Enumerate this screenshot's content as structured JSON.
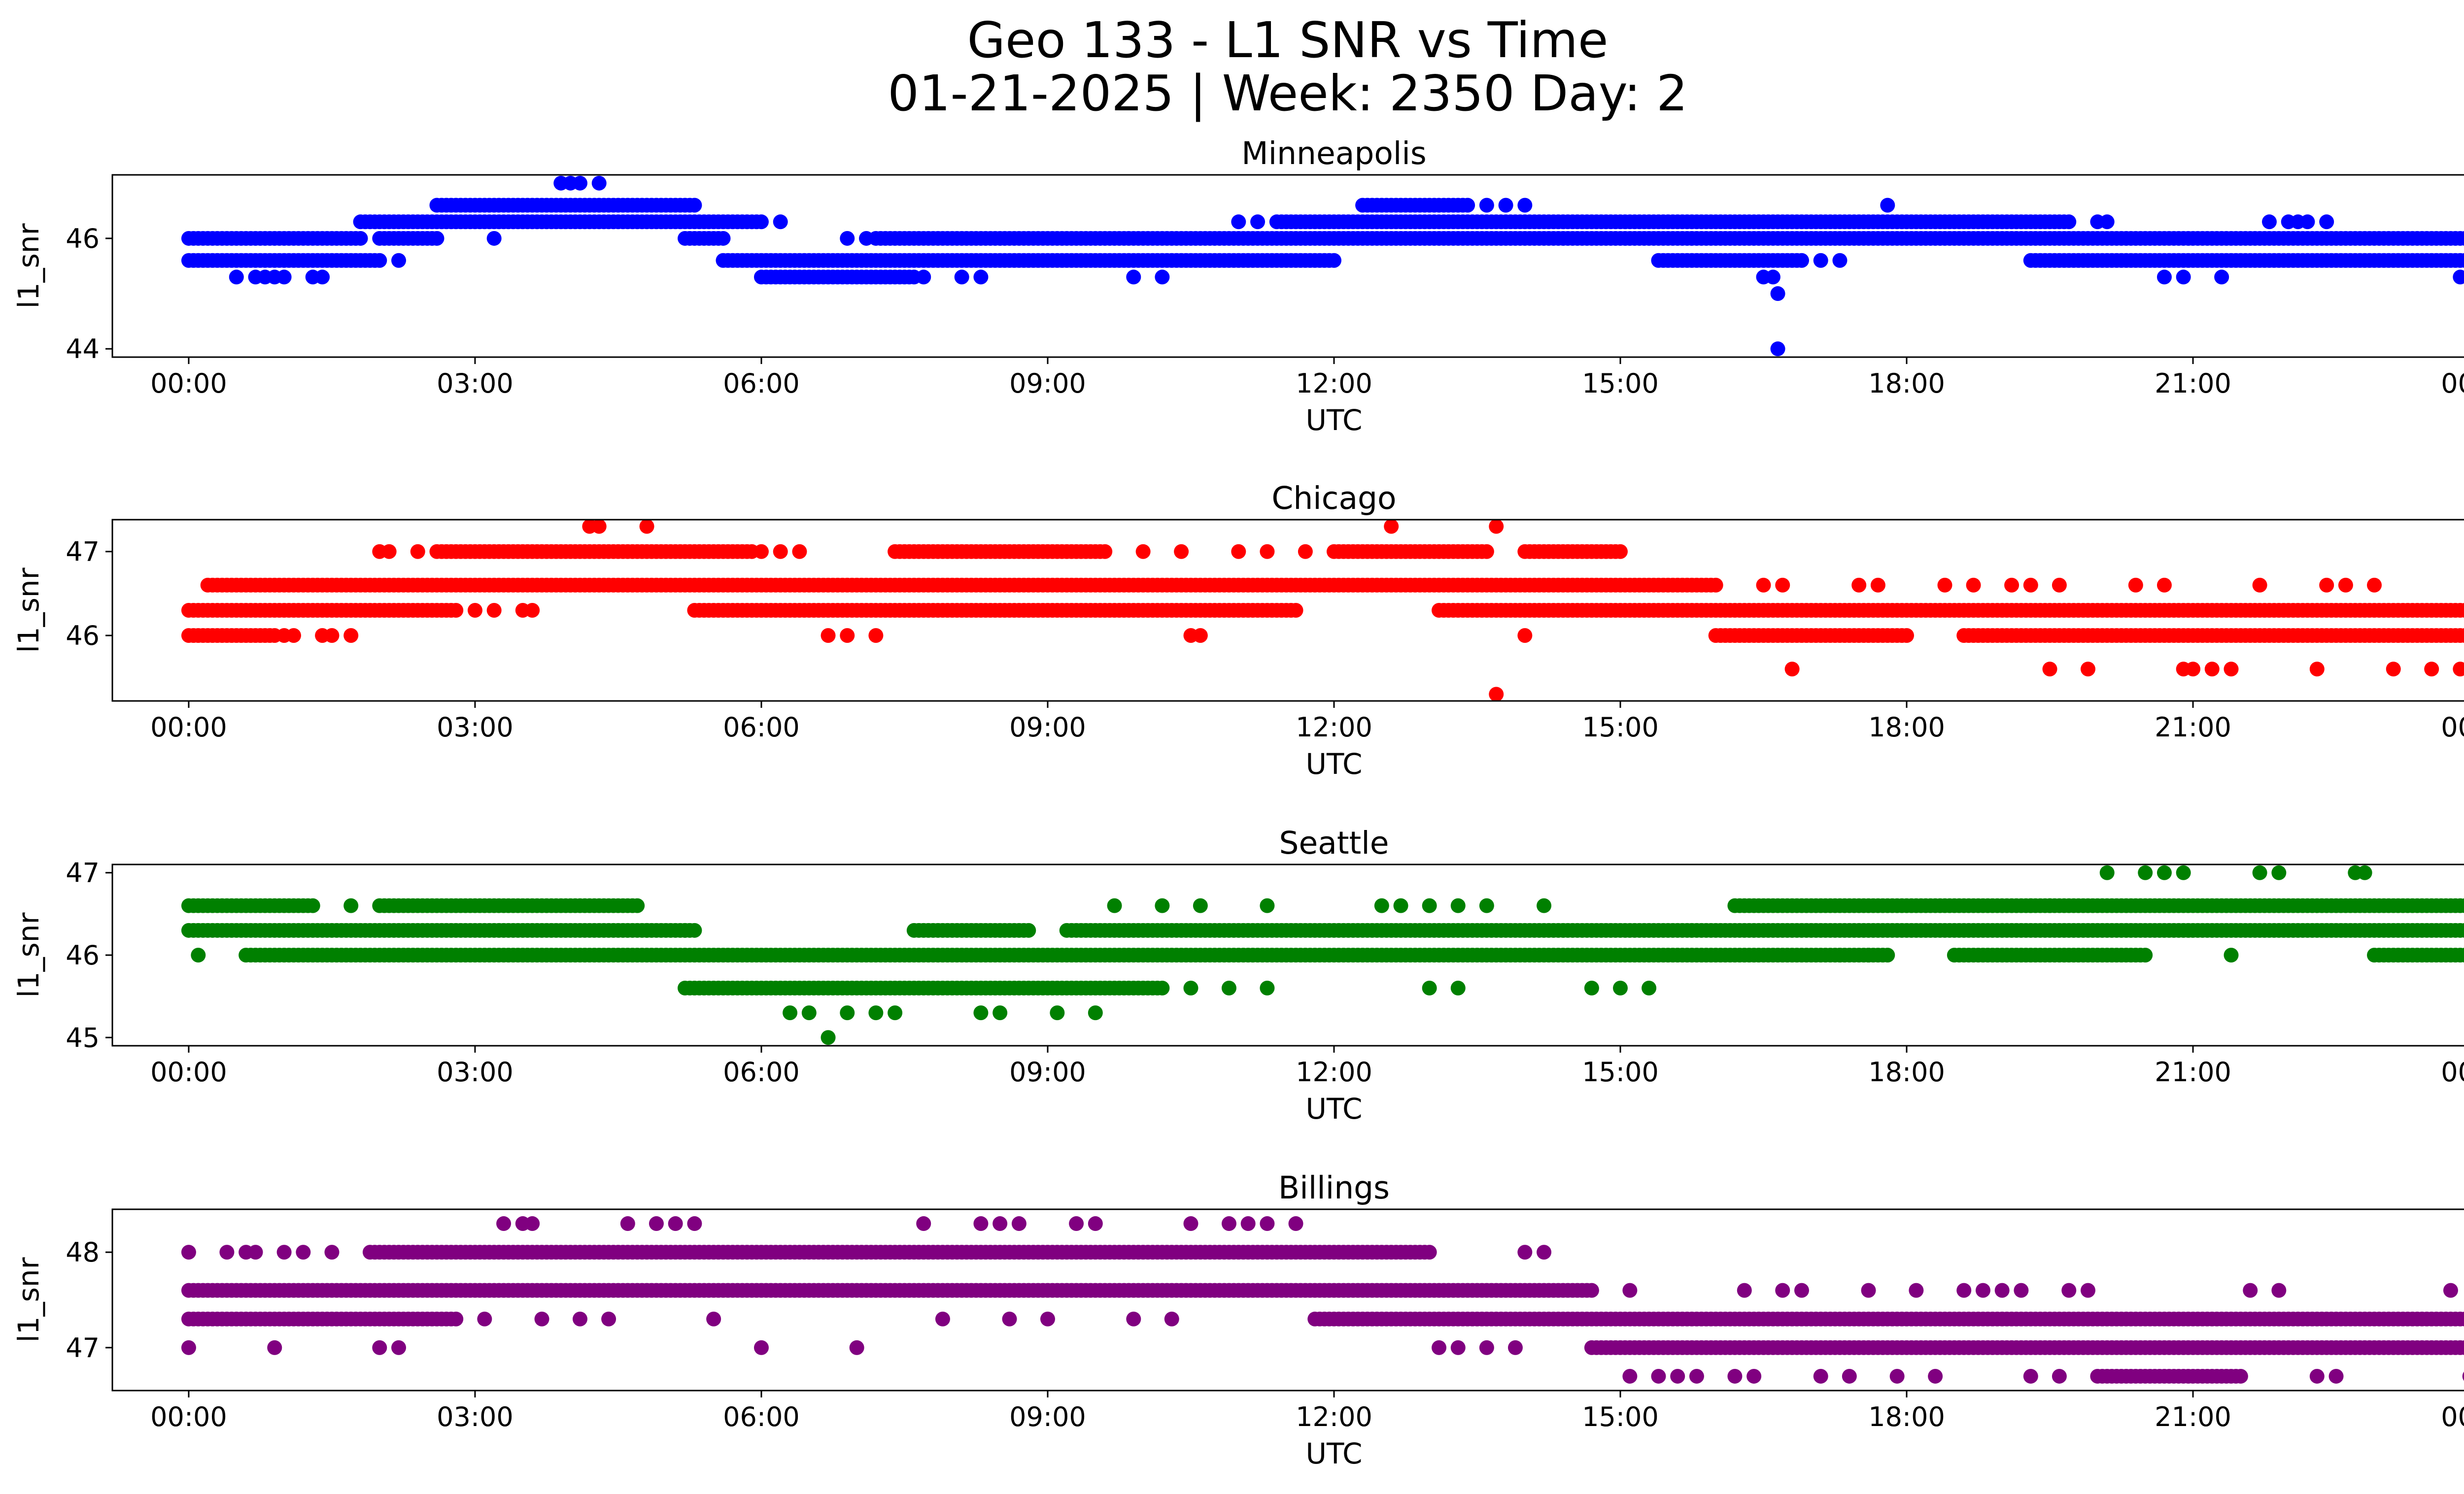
{
  "figure": {
    "title_line1": "Geo 133 - L1 SNR vs Time",
    "title_line2": "01-21-2025 | Week: 2350 Day: 2"
  },
  "chart_data": [
    {
      "type": "scatter",
      "title": "Minneapolis",
      "xlabel": "UTC",
      "ylabel": "l1_snr",
      "color": "#0000ff",
      "xlim": [
        -0.8,
        24.8
      ],
      "ylim": [
        43.85,
        47.15
      ],
      "x_ticks": [
        0,
        3,
        6,
        9,
        12,
        15,
        18,
        21,
        24
      ],
      "x_tick_labels": [
        "00:00",
        "03:00",
        "06:00",
        "09:00",
        "12:00",
        "15:00",
        "18:00",
        "21:00",
        "00:00"
      ],
      "y_ticks": [
        44,
        46
      ],
      "y_tick_labels": [
        "44",
        "46"
      ],
      "bands": [
        {
          "y": 46.0,
          "ranges": [
            [
              0,
              1.8
            ],
            [
              2.0,
              2.6
            ],
            [
              5.2,
              5.6
            ],
            [
              7.2,
              24.0
            ]
          ]
        },
        {
          "y": 45.6,
          "ranges": [
            [
              0,
              2.0
            ],
            [
              5.6,
              12.0
            ],
            [
              15.4,
              16.9
            ],
            [
              19.3,
              24.0
            ]
          ]
        },
        {
          "y": 46.3,
          "ranges": [
            [
              1.8,
              6.0
            ],
            [
              11.4,
              19.7
            ]
          ]
        },
        {
          "y": 46.6,
          "ranges": [
            [
              2.6,
              5.3
            ],
            [
              12.3,
              13.4
            ]
          ]
        },
        {
          "y": 45.3,
          "ranges": [
            [
              6.0,
              7.6
            ]
          ]
        }
      ],
      "points": [
        [
          0.5,
          45.3
        ],
        [
          0.7,
          45.3
        ],
        [
          0.8,
          45.3
        ],
        [
          0.9,
          45.3
        ],
        [
          1.0,
          45.3
        ],
        [
          1.3,
          45.3
        ],
        [
          1.4,
          45.3
        ],
        [
          2.2,
          45.6
        ],
        [
          3.2,
          46.0
        ],
        [
          3.9,
          47.0
        ],
        [
          4.0,
          47.0
        ],
        [
          4.1,
          47.0
        ],
        [
          4.3,
          47.0
        ],
        [
          6.2,
          46.3
        ],
        [
          6.9,
          46.0
        ],
        [
          7.1,
          46.0
        ],
        [
          7.7,
          45.3
        ],
        [
          8.1,
          45.3
        ],
        [
          8.3,
          45.3
        ],
        [
          9.9,
          45.3
        ],
        [
          10.2,
          45.3
        ],
        [
          11.0,
          46.3
        ],
        [
          11.2,
          46.3
        ],
        [
          13.6,
          46.6
        ],
        [
          13.8,
          46.6
        ],
        [
          14.0,
          46.6
        ],
        [
          16.5,
          45.3
        ],
        [
          16.6,
          45.3
        ],
        [
          16.65,
          45.0
        ],
        [
          16.65,
          44.0
        ],
        [
          17.1,
          45.6
        ],
        [
          17.3,
          45.6
        ],
        [
          17.8,
          46.6
        ],
        [
          20.0,
          46.3
        ],
        [
          20.1,
          46.3
        ],
        [
          20.7,
          45.3
        ],
        [
          20.9,
          45.3
        ],
        [
          21.3,
          45.3
        ],
        [
          21.8,
          46.3
        ],
        [
          22.0,
          46.3
        ],
        [
          22.1,
          46.3
        ],
        [
          22.2,
          46.3
        ],
        [
          22.4,
          46.3
        ],
        [
          23.8,
          45.3
        ],
        [
          23.9,
          45.3
        ],
        [
          24.0,
          45.3
        ]
      ]
    },
    {
      "type": "scatter",
      "title": "Chicago",
      "xlabel": "UTC",
      "ylabel": "l1_snr",
      "color": "#ff0000",
      "xlim": [
        -0.8,
        24.8
      ],
      "ylim": [
        45.22,
        47.38
      ],
      "x_ticks": [
        0,
        3,
        6,
        9,
        12,
        15,
        18,
        21,
        24
      ],
      "x_tick_labels": [
        "00:00",
        "03:00",
        "06:00",
        "09:00",
        "12:00",
        "15:00",
        "18:00",
        "21:00",
        "00:00"
      ],
      "y_ticks": [
        46,
        47
      ],
      "y_tick_labels": [
        "46",
        "47"
      ],
      "bands": [
        {
          "y": 46.3,
          "ranges": [
            [
              0,
              2.8
            ],
            [
              5.3,
              11.6
            ],
            [
              13.1,
              24.0
            ]
          ]
        },
        {
          "y": 46.0,
          "ranges": [
            [
              0,
              0.9
            ],
            [
              16.0,
              18.0
            ],
            [
              18.6,
              24.0
            ]
          ]
        },
        {
          "y": 46.6,
          "ranges": [
            [
              0.2,
              16.0
            ]
          ]
        },
        {
          "y": 47.0,
          "ranges": [
            [
              2.6,
              5.9
            ],
            [
              7.4,
              9.6
            ],
            [
              12.0,
              13.6
            ],
            [
              14.0,
              15.0
            ]
          ]
        }
      ],
      "points": [
        [
          1.0,
          46.0
        ],
        [
          1.1,
          46.0
        ],
        [
          1.4,
          46.0
        ],
        [
          1.5,
          46.0
        ],
        [
          1.7,
          46.0
        ],
        [
          2.0,
          47.0
        ],
        [
          2.1,
          47.0
        ],
        [
          2.4,
          47.0
        ],
        [
          3.0,
          46.3
        ],
        [
          3.2,
          46.3
        ],
        [
          3.5,
          46.3
        ],
        [
          3.6,
          46.3
        ],
        [
          4.2,
          47.3
        ],
        [
          4.3,
          47.3
        ],
        [
          4.8,
          47.3
        ],
        [
          6.0,
          47.0
        ],
        [
          6.2,
          47.0
        ],
        [
          6.4,
          47.0
        ],
        [
          6.7,
          46.0
        ],
        [
          6.9,
          46.0
        ],
        [
          7.2,
          46.0
        ],
        [
          10.0,
          47.0
        ],
        [
          10.4,
          47.0
        ],
        [
          10.5,
          46.0
        ],
        [
          10.6,
          46.0
        ],
        [
          11.0,
          47.0
        ],
        [
          11.3,
          47.0
        ],
        [
          11.7,
          47.0
        ],
        [
          12.6,
          47.3
        ],
        [
          13.7,
          47.3
        ],
        [
          13.7,
          45.3
        ],
        [
          14.0,
          46.0
        ],
        [
          16.5,
          46.6
        ],
        [
          16.7,
          46.6
        ],
        [
          16.8,
          45.6
        ],
        [
          17.5,
          46.6
        ],
        [
          17.7,
          46.6
        ],
        [
          18.4,
          46.6
        ],
        [
          18.7,
          46.6
        ],
        [
          19.1,
          46.6
        ],
        [
          19.3,
          46.6
        ],
        [
          19.5,
          45.6
        ],
        [
          19.6,
          46.6
        ],
        [
          19.9,
          45.6
        ],
        [
          20.4,
          46.6
        ],
        [
          20.7,
          46.6
        ],
        [
          20.9,
          45.6
        ],
        [
          21.0,
          45.6
        ],
        [
          21.2,
          45.6
        ],
        [
          21.4,
          45.6
        ],
        [
          21.7,
          46.6
        ],
        [
          22.3,
          45.6
        ],
        [
          22.4,
          46.6
        ],
        [
          22.6,
          46.6
        ],
        [
          22.9,
          46.6
        ],
        [
          23.1,
          45.6
        ],
        [
          23.5,
          45.6
        ],
        [
          23.8,
          45.6
        ],
        [
          24.0,
          45.6
        ]
      ]
    },
    {
      "type": "scatter",
      "title": "Seattle",
      "xlabel": "UTC",
      "ylabel": "l1_snr",
      "color": "#008000",
      "xlim": [
        -0.8,
        24.8
      ],
      "ylim": [
        44.9,
        47.1
      ],
      "x_ticks": [
        0,
        3,
        6,
        9,
        12,
        15,
        18,
        21,
        24
      ],
      "x_tick_labels": [
        "00:00",
        "03:00",
        "06:00",
        "09:00",
        "12:00",
        "15:00",
        "18:00",
        "21:00",
        "00:00"
      ],
      "y_ticks": [
        45,
        46,
        47
      ],
      "y_tick_labels": [
        "45",
        "46",
        "47"
      ],
      "bands": [
        {
          "y": 46.3,
          "ranges": [
            [
              0,
              5.3
            ],
            [
              7.6,
              8.8
            ],
            [
              9.2,
              24.0
            ]
          ]
        },
        {
          "y": 46.6,
          "ranges": [
            [
              0,
              1.3
            ],
            [
              2.0,
              4.7
            ],
            [
              16.2,
              24.0
            ]
          ]
        },
        {
          "y": 46.0,
          "ranges": [
            [
              0.6,
              17.8
            ],
            [
              18.5,
              20.5
            ],
            [
              22.9,
              24.0
            ]
          ]
        },
        {
          "y": 45.6,
          "ranges": [
            [
              5.2,
              10.2
            ]
          ]
        }
      ],
      "points": [
        [
          0.1,
          46.0
        ],
        [
          1.7,
          46.6
        ],
        [
          4.8,
          46.3
        ],
        [
          5.2,
          46.3
        ],
        [
          6.3,
          45.3
        ],
        [
          6.5,
          45.3
        ],
        [
          6.7,
          45.0
        ],
        [
          6.9,
          45.3
        ],
        [
          7.2,
          45.3
        ],
        [
          7.4,
          45.3
        ],
        [
          8.3,
          45.3
        ],
        [
          8.5,
          45.3
        ],
        [
          9.1,
          45.3
        ],
        [
          9.5,
          45.3
        ],
        [
          9.7,
          46.6
        ],
        [
          10.2,
          46.6
        ],
        [
          10.6,
          46.6
        ],
        [
          10.5,
          45.6
        ],
        [
          10.9,
          45.6
        ],
        [
          11.3,
          46.6
        ],
        [
          11.3,
          45.6
        ],
        [
          12.5,
          46.6
        ],
        [
          12.7,
          46.6
        ],
        [
          13.0,
          46.6
        ],
        [
          13.3,
          46.6
        ],
        [
          13.6,
          46.6
        ],
        [
          13.0,
          45.6
        ],
        [
          13.3,
          45.6
        ],
        [
          14.2,
          46.6
        ],
        [
          14.7,
          45.6
        ],
        [
          15.0,
          45.6
        ],
        [
          15.3,
          45.6
        ],
        [
          17.3,
          46.0
        ],
        [
          17.6,
          46.0
        ],
        [
          19.3,
          46.6
        ],
        [
          19.5,
          46.6
        ],
        [
          20.1,
          47.0
        ],
        [
          20.5,
          47.0
        ],
        [
          20.7,
          47.0
        ],
        [
          20.9,
          47.0
        ],
        [
          21.4,
          46.0
        ],
        [
          21.7,
          47.0
        ],
        [
          21.9,
          47.0
        ],
        [
          22.7,
          47.0
        ],
        [
          22.8,
          47.0
        ]
      ]
    },
    {
      "type": "scatter",
      "title": "Billings",
      "xlabel": "UTC",
      "ylabel": "l1_snr",
      "color": "#800080",
      "xlim": [
        -0.8,
        24.8
      ],
      "ylim": [
        46.55,
        48.45
      ],
      "x_ticks": [
        0,
        3,
        6,
        9,
        12,
        15,
        18,
        21,
        24
      ],
      "x_tick_labels": [
        "00:00",
        "03:00",
        "06:00",
        "09:00",
        "12:00",
        "15:00",
        "18:00",
        "21:00",
        "00:00"
      ],
      "y_ticks": [
        47,
        48
      ],
      "y_tick_labels": [
        "47",
        "48"
      ],
      "bands": [
        {
          "y": 47.6,
          "ranges": [
            [
              0,
              14.7
            ]
          ]
        },
        {
          "y": 47.3,
          "ranges": [
            [
              0,
              2.8
            ],
            [
              11.8,
              24.0
            ]
          ]
        },
        {
          "y": 48.0,
          "ranges": [
            [
              1.9,
              13.0
            ]
          ]
        },
        {
          "y": 47.0,
          "ranges": [
            [
              14.7,
              24.0
            ]
          ]
        },
        {
          "y": 46.7,
          "ranges": [
            [
              20.0,
              21.5
            ]
          ]
        }
      ],
      "points": [
        [
          0.0,
          48.0
        ],
        [
          0.0,
          47.0
        ],
        [
          0.4,
          48.0
        ],
        [
          0.6,
          48.0
        ],
        [
          0.7,
          48.0
        ],
        [
          0.9,
          47.0
        ],
        [
          1.0,
          48.0
        ],
        [
          1.2,
          48.0
        ],
        [
          1.5,
          48.0
        ],
        [
          2.0,
          47.0
        ],
        [
          2.2,
          47.0
        ],
        [
          3.1,
          47.3
        ],
        [
          3.3,
          48.3
        ],
        [
          3.5,
          48.3
        ],
        [
          3.6,
          48.3
        ],
        [
          3.7,
          47.3
        ],
        [
          4.1,
          47.3
        ],
        [
          4.4,
          47.3
        ],
        [
          4.6,
          48.3
        ],
        [
          4.9,
          48.3
        ],
        [
          5.1,
          48.3
        ],
        [
          5.3,
          48.3
        ],
        [
          5.5,
          47.3
        ],
        [
          6.0,
          47.0
        ],
        [
          7.0,
          47.0
        ],
        [
          7.7,
          48.3
        ],
        [
          7.9,
          47.3
        ],
        [
          8.3,
          48.3
        ],
        [
          8.5,
          48.3
        ],
        [
          8.7,
          48.3
        ],
        [
          8.6,
          47.3
        ],
        [
          9.0,
          47.3
        ],
        [
          9.3,
          48.3
        ],
        [
          9.5,
          48.3
        ],
        [
          9.9,
          47.3
        ],
        [
          10.3,
          47.3
        ],
        [
          10.5,
          48.3
        ],
        [
          10.9,
          48.3
        ],
        [
          11.1,
          48.3
        ],
        [
          11.3,
          48.3
        ],
        [
          11.6,
          48.3
        ],
        [
          13.1,
          47.0
        ],
        [
          13.3,
          47.0
        ],
        [
          13.6,
          47.0
        ],
        [
          13.9,
          47.0
        ],
        [
          14.0,
          48.0
        ],
        [
          14.2,
          48.0
        ],
        [
          15.1,
          47.6
        ],
        [
          15.1,
          46.7
        ],
        [
          15.4,
          46.7
        ],
        [
          15.6,
          46.7
        ],
        [
          15.8,
          46.7
        ],
        [
          16.3,
          47.6
        ],
        [
          16.2,
          46.7
        ],
        [
          16.4,
          46.7
        ],
        [
          16.7,
          47.6
        ],
        [
          16.9,
          47.6
        ],
        [
          17.1,
          46.7
        ],
        [
          17.4,
          46.7
        ],
        [
          17.6,
          47.6
        ],
        [
          17.9,
          46.7
        ],
        [
          18.1,
          47.6
        ],
        [
          18.3,
          46.7
        ],
        [
          18.6,
          47.6
        ],
        [
          18.8,
          47.6
        ],
        [
          19.0,
          47.6
        ],
        [
          19.2,
          47.6
        ],
        [
          19.3,
          46.7
        ],
        [
          19.6,
          46.7
        ],
        [
          19.7,
          47.6
        ],
        [
          19.9,
          47.6
        ],
        [
          21.6,
          47.6
        ],
        [
          21.9,
          47.6
        ],
        [
          22.3,
          46.7
        ],
        [
          22.5,
          46.7
        ],
        [
          23.7,
          47.6
        ],
        [
          23.9,
          46.7
        ]
      ]
    }
  ]
}
